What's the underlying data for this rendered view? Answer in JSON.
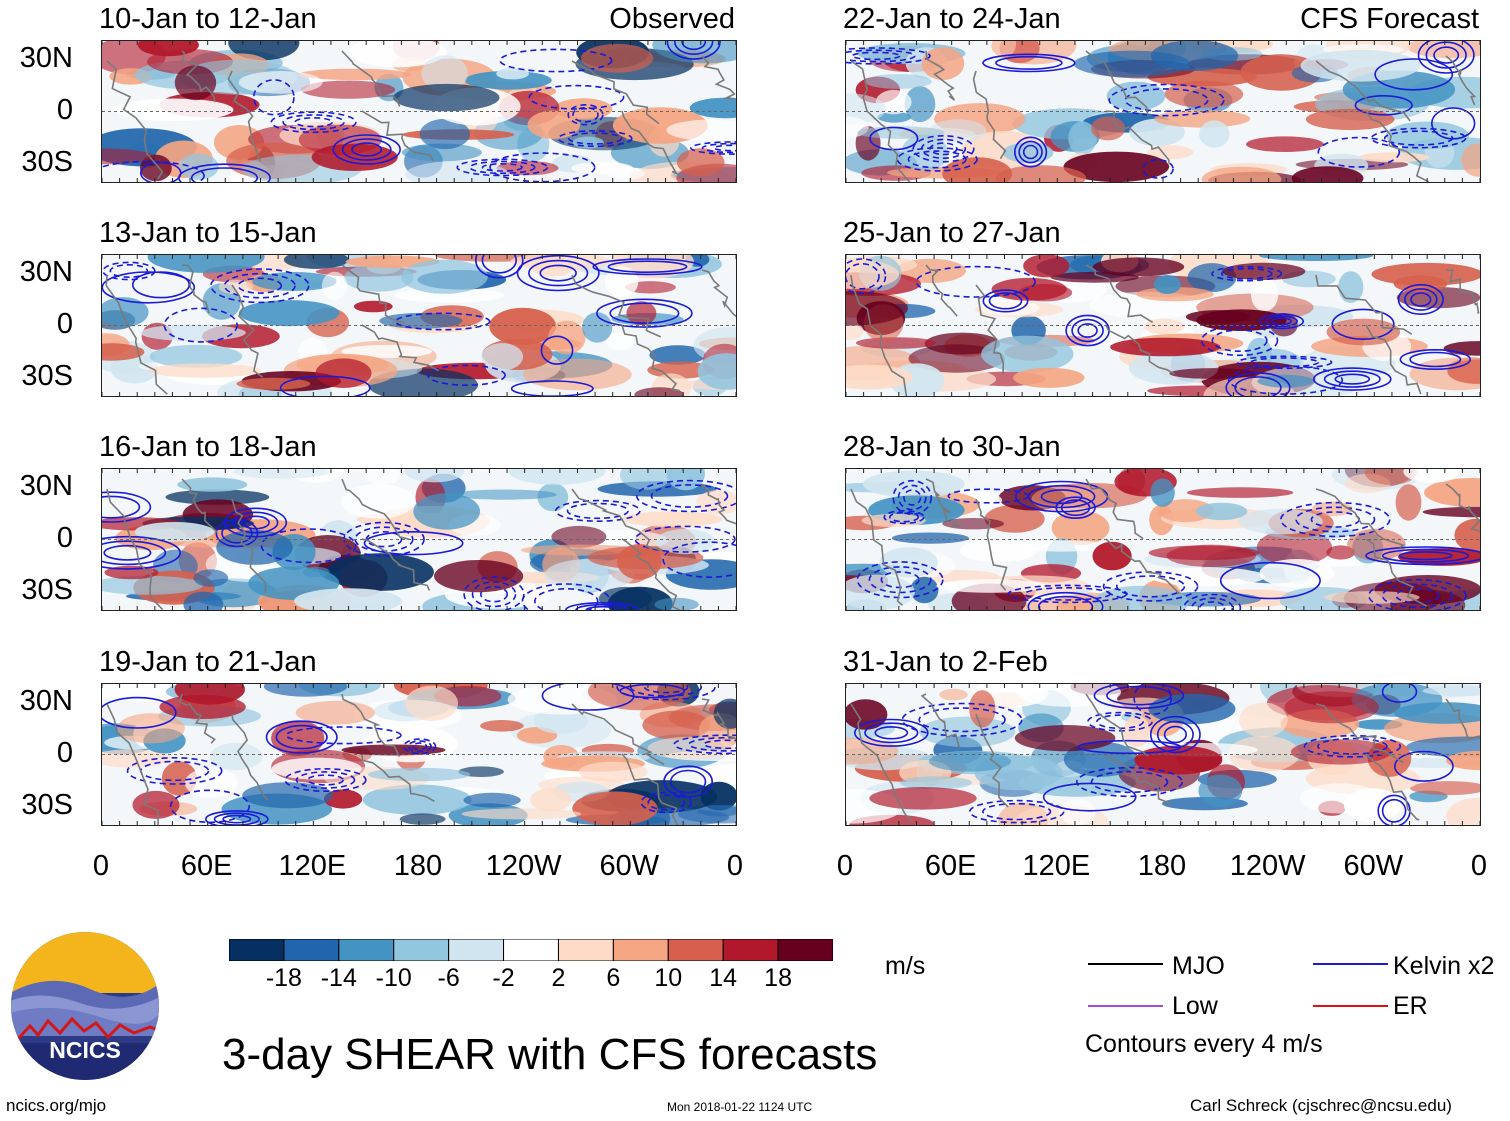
{
  "chart_data": {
    "type": "heatmap",
    "title": "3-day SHEAR with CFS forecasts",
    "units": "m/s",
    "panels": [
      {
        "id": "p1",
        "column": "left",
        "row": 1,
        "label": "10-Jan to 12-Jan",
        "tag": "Observed",
        "kind": "observed"
      },
      {
        "id": "p2",
        "column": "left",
        "row": 2,
        "label": "13-Jan to 15-Jan",
        "tag": "",
        "kind": "observed"
      },
      {
        "id": "p3",
        "column": "left",
        "row": 3,
        "label": "16-Jan to 18-Jan",
        "tag": "",
        "kind": "observed"
      },
      {
        "id": "p4",
        "column": "left",
        "row": 4,
        "label": "19-Jan to 21-Jan",
        "tag": "",
        "kind": "observed"
      },
      {
        "id": "p5",
        "column": "right",
        "row": 1,
        "label": "22-Jan to 24-Jan",
        "tag": "CFS Forecast",
        "kind": "forecast"
      },
      {
        "id": "p6",
        "column": "right",
        "row": 2,
        "label": "25-Jan to 27-Jan",
        "tag": "",
        "kind": "forecast"
      },
      {
        "id": "p7",
        "column": "right",
        "row": 3,
        "label": "28-Jan to 30-Jan",
        "tag": "",
        "kind": "forecast"
      },
      {
        "id": "p8",
        "column": "right",
        "row": 4,
        "label": "31-Jan to 2-Feb",
        "tag": "",
        "kind": "forecast"
      }
    ],
    "y_ticks": [
      "30N",
      "0",
      "30S"
    ],
    "x_ticks": [
      "0",
      "60E",
      "120E",
      "180",
      "120W",
      "60W",
      "0"
    ],
    "xlim_deg_east": [
      0,
      360
    ],
    "ylim_deg": [
      -40,
      40
    ],
    "colorbar": {
      "tick_labels": [
        "-18",
        "-14",
        "-10",
        "-6",
        "-2",
        "2",
        "6",
        "10",
        "14",
        "18"
      ],
      "colors": [
        "#053061",
        "#2166ac",
        "#4393c3",
        "#92c5de",
        "#d1e5f0",
        "#ffffff",
        "#fddbc7",
        "#f4a582",
        "#d6604d",
        "#b2182b",
        "#67001f"
      ]
    },
    "legend": {
      "items": [
        {
          "label": "MJO",
          "color": "#000000"
        },
        {
          "label": "Kelvin x2",
          "color": "#1a1ad8"
        },
        {
          "label": "Low",
          "color": "#a64ad8"
        },
        {
          "label": "ER",
          "color": "#e01010"
        }
      ],
      "note": "Contours every 4 m/s"
    }
  },
  "logo": {
    "text": "NCICS"
  },
  "footer": {
    "website": "ncics.org/mjo",
    "timestamp": "Mon 2018-01-22 1124 UTC",
    "author": "Carl Schreck (cjschrec@ncsu.edu)"
  }
}
